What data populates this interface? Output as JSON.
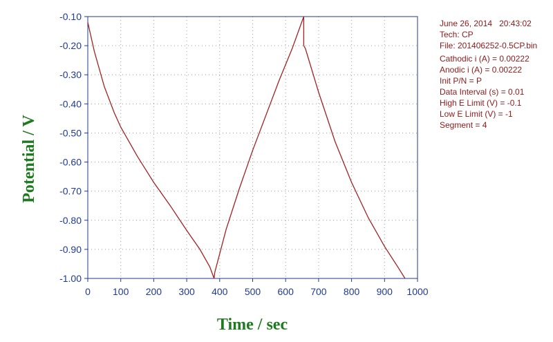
{
  "info": {
    "date": "June 26, 2014",
    "time": "20:43:02",
    "tech": "Tech: CP",
    "file": "File: 201406252-0.5CP.bin",
    "cathodic": "Cathodic i (A) = 0.00222",
    "anodic": "Anodic i (A) = 0.00222",
    "init_pn": "Init P/N = P",
    "data_interval": "Data Interval (s) = 0.01",
    "high_e": "High E Limit (V) = -0.1",
    "low_e": "Low E Limit (V) = -1",
    "segment": "Segment = 4"
  },
  "colors": {
    "line": "#a32020",
    "axis": "#1f3a93",
    "ticklabel": "#1f3a93",
    "title": "#1e7a1e",
    "grid": "#9a9a9a",
    "info": "#8b1a1a"
  },
  "chart_data": {
    "type": "line",
    "title": "",
    "xlabel": "Time / sec",
    "ylabel": "Potential / V",
    "xlim": [
      0,
      1000
    ],
    "ylim": [
      -1.0,
      -0.1
    ],
    "xticks": [
      0,
      100,
      200,
      300,
      400,
      500,
      600,
      700,
      800,
      900,
      1000
    ],
    "yticks": [
      -0.1,
      -0.2,
      -0.3,
      -0.4,
      -0.5,
      -0.6,
      -0.7,
      -0.8,
      -0.9,
      -1.0
    ],
    "xtick_labels": [
      "0",
      "100",
      "200",
      "300",
      "400",
      "500",
      "600",
      "700",
      "800",
      "900",
      "1000"
    ],
    "ytick_labels": [
      "-0.10",
      "-0.20",
      "-0.30",
      "-0.40",
      "-0.50",
      "-0.60",
      "-0.70",
      "-0.80",
      "-0.90",
      "-1.00"
    ],
    "grid": true,
    "series": [
      {
        "x": [
          0,
          20,
          50,
          80,
          100,
          150,
          200,
          250,
          300,
          340,
          370,
          383,
          383,
          385,
          420,
          460,
          500,
          540,
          580,
          620,
          655,
          655,
          660,
          700,
          750,
          800,
          850,
          900,
          940,
          962
        ],
        "y": [
          -0.12,
          -0.22,
          -0.34,
          -0.43,
          -0.48,
          -0.58,
          -0.67,
          -0.75,
          -0.835,
          -0.9,
          -0.96,
          -1.0,
          -1.0,
          -0.98,
          -0.83,
          -0.69,
          -0.56,
          -0.44,
          -0.32,
          -0.21,
          -0.1,
          -0.2,
          -0.21,
          -0.36,
          -0.53,
          -0.67,
          -0.79,
          -0.89,
          -0.96,
          -1.0
        ]
      }
    ]
  }
}
